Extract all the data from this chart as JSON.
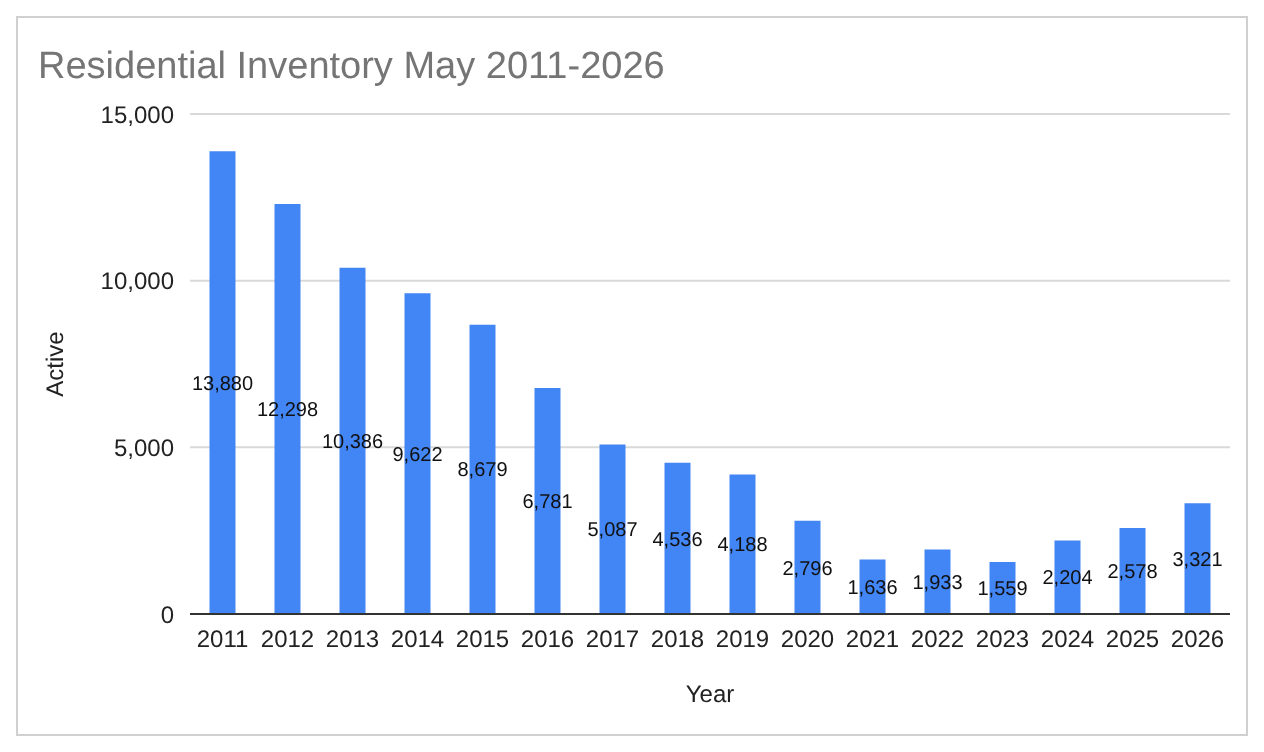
{
  "chart_data": {
    "type": "bar",
    "title": "Residential Inventory May 2011-2026",
    "xlabel": "Year",
    "ylabel": "Active",
    "categories": [
      "2011",
      "2012",
      "2013",
      "2014",
      "2015",
      "2016",
      "2017",
      "2018",
      "2019",
      "2020",
      "2021",
      "2022",
      "2023",
      "2024",
      "2025",
      "2026"
    ],
    "values": [
      13880,
      12298,
      10386,
      9622,
      8679,
      6781,
      5087,
      4536,
      4188,
      2796,
      1636,
      1933,
      1559,
      2204,
      2578,
      3321
    ],
    "color": "#4285f4",
    "ylim": [
      0,
      15000
    ],
    "yticks": [
      {
        "value": 0,
        "label": "0"
      },
      {
        "value": 5000,
        "label": "5,000"
      },
      {
        "value": 10000,
        "label": "10,000"
      },
      {
        "value": 15000,
        "label": "15,000"
      }
    ],
    "value_labels": [
      "13,880",
      "12,298",
      "10,386",
      "9,622",
      "8,679",
      "6,781",
      "5,087",
      "4,536",
      "4,188",
      "2,796",
      "1,636",
      "1,933",
      "1,559",
      "2,204",
      "2,578",
      "3,321"
    ],
    "grid": "y",
    "legend": false
  }
}
